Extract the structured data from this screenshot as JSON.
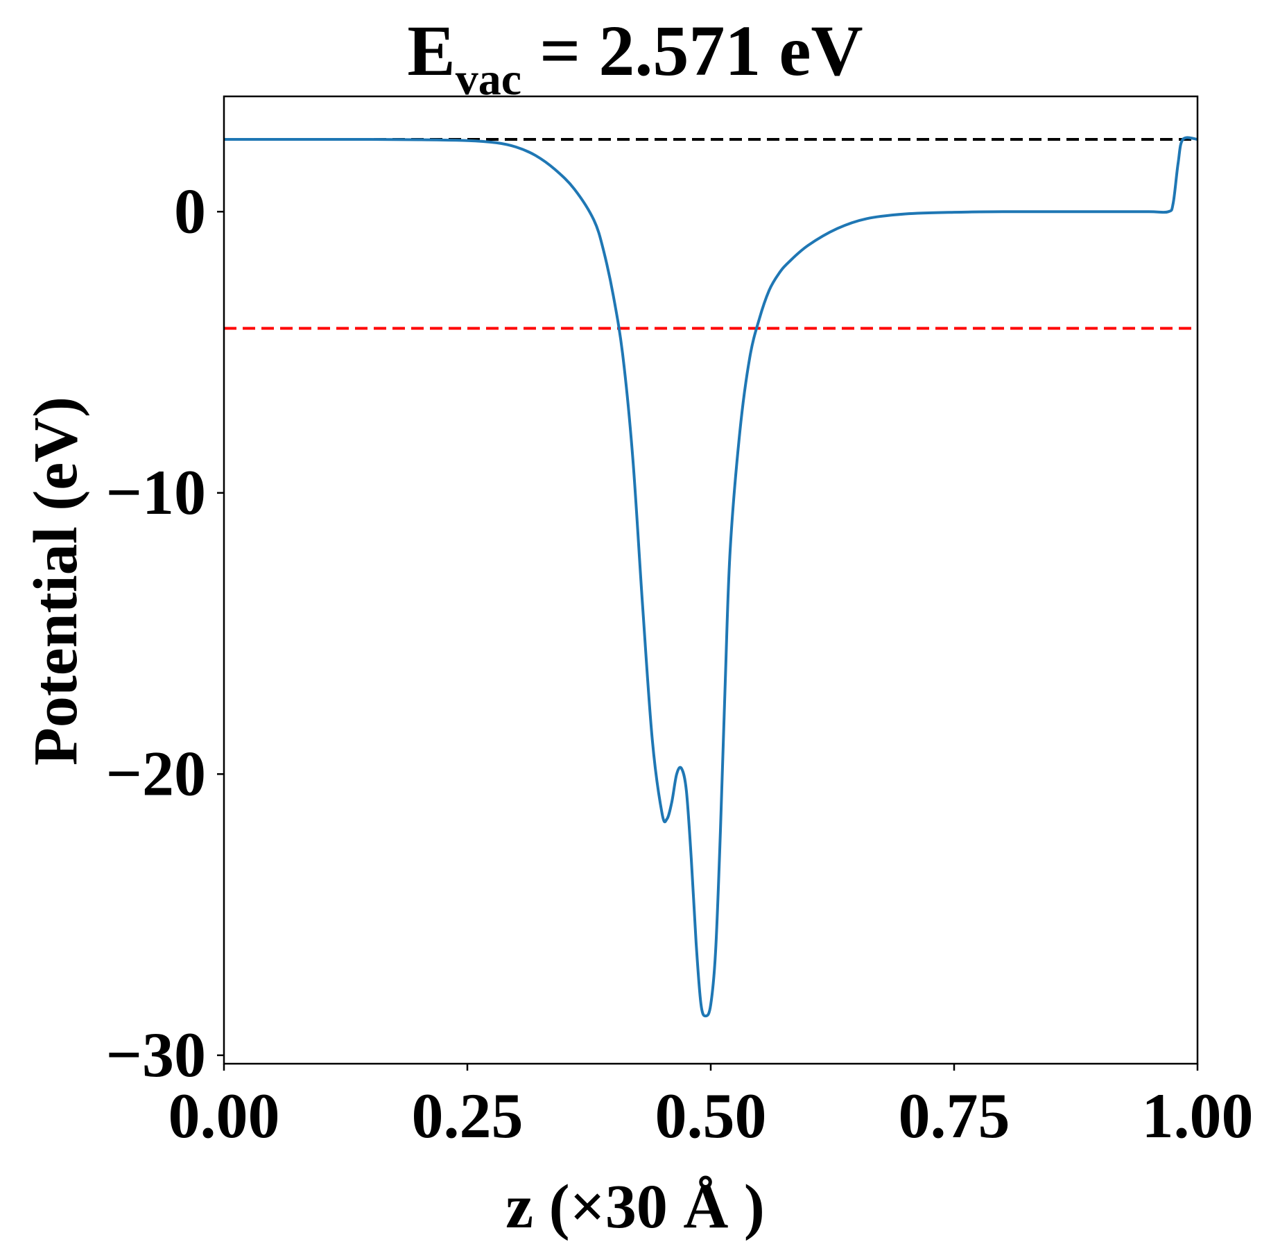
{
  "chart_data": {
    "type": "line",
    "title": {
      "main": "E",
      "subscript": "vac",
      "rest": " = 2.571 eV"
    },
    "xlabel": "z (×30 Å )",
    "ylabel": "Potential (eV)",
    "xlim": [
      0.0,
      1.0
    ],
    "ylim": [
      -30.3,
      4.1
    ],
    "x_ticks": [
      0.0,
      0.25,
      0.5,
      0.75,
      1.0
    ],
    "x_tick_labels": [
      "0.00",
      "0.25",
      "0.50",
      "0.75",
      "1.00"
    ],
    "y_ticks": [
      0,
      -10,
      -20,
      -30
    ],
    "y_tick_labels": [
      "0",
      "−10",
      "−20",
      "−30"
    ],
    "grid": false,
    "reference_lines": [
      {
        "y": 2.571,
        "color": "#000000",
        "style": "dashed"
      },
      {
        "y": -4.15,
        "color": "#ff0000",
        "style": "dashed"
      }
    ],
    "series": [
      {
        "color": "#1f77b4",
        "x": [
          0.0,
          0.05,
          0.1,
          0.15,
          0.2,
          0.25,
          0.28,
          0.3,
          0.32,
          0.34,
          0.36,
          0.38,
          0.39,
          0.4,
          0.41,
          0.42,
          0.43,
          0.44,
          0.45,
          0.455,
          0.46,
          0.465,
          0.47,
          0.475,
          0.48,
          0.485,
          0.49,
          0.495,
          0.5,
          0.505,
          0.51,
          0.515,
          0.52,
          0.53,
          0.54,
          0.55,
          0.56,
          0.57,
          0.58,
          0.6,
          0.63,
          0.66,
          0.7,
          0.75,
          0.8,
          0.85,
          0.9,
          0.95,
          0.97,
          0.975,
          0.98,
          0.985,
          1.0
        ],
        "y": [
          2.57,
          2.57,
          2.57,
          2.57,
          2.56,
          2.53,
          2.45,
          2.3,
          2.0,
          1.5,
          0.8,
          -0.3,
          -1.4,
          -3.0,
          -5.2,
          -8.8,
          -14.0,
          -18.8,
          -21.4,
          -21.6,
          -21.0,
          -20.0,
          -19.8,
          -20.6,
          -23.0,
          -26.0,
          -28.2,
          -28.6,
          -28.2,
          -26.3,
          -22.0,
          -16.6,
          -12.0,
          -7.8,
          -5.2,
          -3.8,
          -2.8,
          -2.2,
          -1.8,
          -1.2,
          -0.6,
          -0.25,
          -0.08,
          -0.02,
          0.0,
          0.0,
          0.0,
          0.0,
          0.0,
          0.3,
          1.7,
          2.57,
          2.57
        ]
      }
    ]
  }
}
